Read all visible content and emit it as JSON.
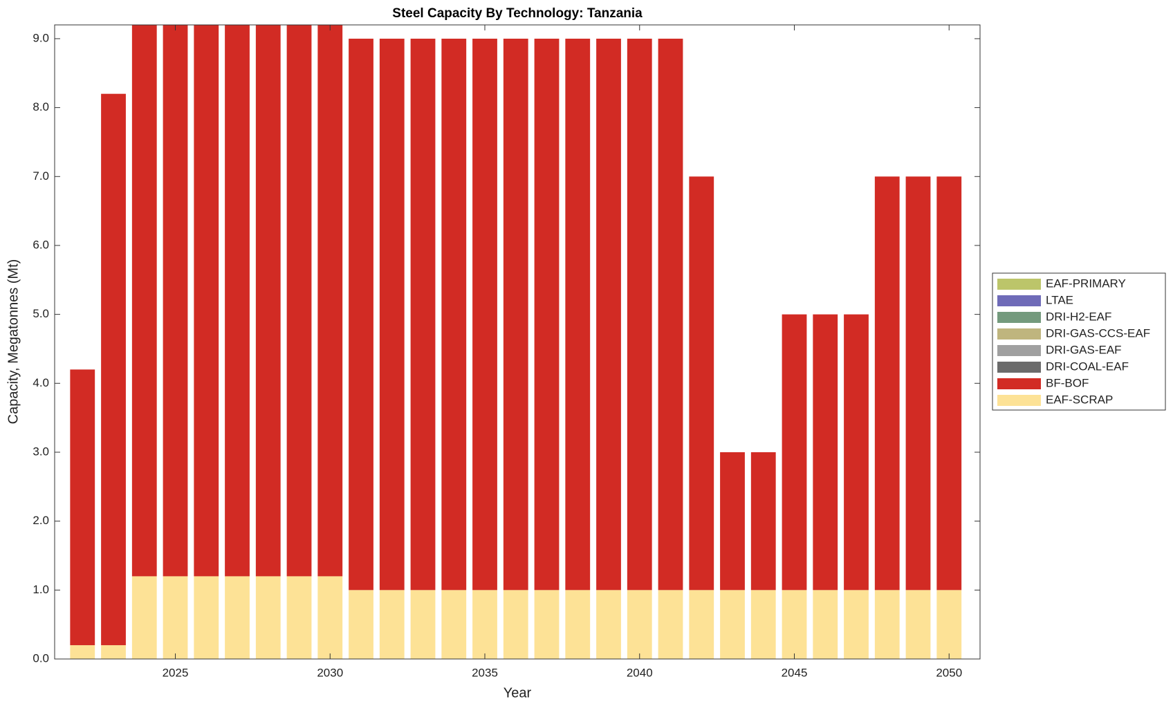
{
  "chart_data": {
    "type": "bar",
    "stacked": true,
    "title": "Steel Capacity By Technology: Tanzania",
    "x_label": "Year",
    "y_label": "Capacity, Megatonnes (Mt)",
    "x": [
      2022,
      2023,
      2024,
      2025,
      2026,
      2027,
      2028,
      2029,
      2030,
      2031,
      2032,
      2033,
      2034,
      2035,
      2036,
      2037,
      2038,
      2039,
      2040,
      2041,
      2042,
      2043,
      2044,
      2045,
      2046,
      2047,
      2048,
      2049,
      2050
    ],
    "xlim": [
      2021.1,
      2051
    ],
    "xticks": [
      2025,
      2030,
      2035,
      2040,
      2045,
      2050
    ],
    "ylim": [
      0,
      9.2
    ],
    "yticks": [
      {
        "value": 0,
        "label": "0.0"
      },
      {
        "value": 1,
        "label": "1.0"
      },
      {
        "value": 2,
        "label": "2.0"
      },
      {
        "value": 3,
        "label": "3.0"
      },
      {
        "value": 4,
        "label": "4.0"
      },
      {
        "value": 5,
        "label": "5.0"
      },
      {
        "value": 6,
        "label": "6.0"
      },
      {
        "value": 7,
        "label": "7.0"
      },
      {
        "value": 8,
        "label": "8.0"
      },
      {
        "value": 9,
        "label": "9.0"
      }
    ],
    "legend_position": "right",
    "series": [
      {
        "name": "EAF-PRIMARY",
        "color": "#bcc56a",
        "values": [
          0,
          0,
          0,
          0,
          0,
          0,
          0,
          0,
          0,
          0,
          0,
          0,
          0,
          0,
          0,
          0,
          0,
          0,
          0,
          0,
          0,
          0,
          0,
          0,
          0,
          0,
          0,
          0,
          0
        ]
      },
      {
        "name": "LTAE",
        "color": "#6f6bb8",
        "values": [
          0,
          0,
          0,
          0,
          0,
          0,
          0,
          0,
          0,
          0,
          0,
          0,
          0,
          0,
          0,
          0,
          0,
          0,
          0,
          0,
          0,
          0,
          0,
          0,
          0,
          0,
          0,
          0,
          0
        ]
      },
      {
        "name": "DRI-H2-EAF",
        "color": "#749a7d",
        "values": [
          0,
          0,
          0,
          0,
          0,
          0,
          0,
          0,
          0,
          0,
          0,
          0,
          0,
          0,
          0,
          0,
          0,
          0,
          0,
          0,
          0,
          0,
          0,
          0,
          0,
          0,
          0,
          0,
          0
        ]
      },
      {
        "name": "DRI-GAS-CCS-EAF",
        "color": "#bfb57e",
        "values": [
          0,
          0,
          0,
          0,
          0,
          0,
          0,
          0,
          0,
          0,
          0,
          0,
          0,
          0,
          0,
          0,
          0,
          0,
          0,
          0,
          0,
          0,
          0,
          0,
          0,
          0,
          0,
          0,
          0
        ]
      },
      {
        "name": "DRI-GAS-EAF",
        "color": "#a0a0a0",
        "values": [
          0,
          0,
          0,
          0,
          0,
          0,
          0,
          0,
          0,
          0,
          0,
          0,
          0,
          0,
          0,
          0,
          0,
          0,
          0,
          0,
          0,
          0,
          0,
          0,
          0,
          0,
          0,
          0,
          0
        ]
      },
      {
        "name": "DRI-COAL-EAF",
        "color": "#6b6b6b",
        "values": [
          0,
          0,
          0,
          0,
          0,
          0,
          0,
          0,
          0,
          0,
          0,
          0,
          0,
          0,
          0,
          0,
          0,
          0,
          0,
          0,
          0,
          0,
          0,
          0,
          0,
          0,
          0,
          0,
          0
        ]
      },
      {
        "name": "BF-BOF",
        "color": "#d22b24",
        "values": [
          4,
          8,
          8,
          8,
          8,
          8,
          8,
          8,
          8,
          8,
          8,
          8,
          8,
          8,
          8,
          8,
          8,
          8,
          8,
          8,
          6,
          2,
          2,
          4,
          4,
          4,
          6,
          6,
          6
        ]
      },
      {
        "name": "EAF-SCRAP",
        "color": "#fde296",
        "values": [
          0.2,
          0.2,
          1.2,
          1.2,
          1.2,
          1.2,
          1.2,
          1.2,
          1.2,
          1,
          1,
          1,
          1,
          1,
          1,
          1,
          1,
          1,
          1,
          1,
          1,
          1,
          1,
          1,
          1,
          1,
          1,
          1,
          1
        ]
      }
    ]
  }
}
